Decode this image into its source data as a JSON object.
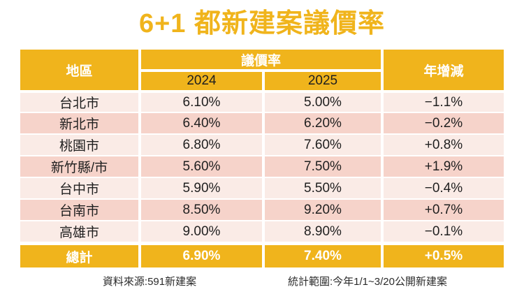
{
  "title": "6+1 都新建案議價率",
  "colors": {
    "accent_gold": "#F0B41C",
    "row_light_pink": "#FAEBE6",
    "row_dark_pink": "#F6D3CA",
    "header_text": "#FFFFFF",
    "body_text": "#1F1F1F"
  },
  "table": {
    "header": {
      "region": "地區",
      "rate_group": "議價率",
      "year_2024": "2024",
      "year_2025": "2025",
      "yoy": "年增減"
    },
    "rows": [
      {
        "region": "台北市",
        "y2024": "6.10%",
        "y2025": "5.00%",
        "yoy": "−1.1%"
      },
      {
        "region": "新北市",
        "y2024": "6.40%",
        "y2025": "6.20%",
        "yoy": "−0.2%"
      },
      {
        "region": "桃園市",
        "y2024": "6.80%",
        "y2025": "7.60%",
        "yoy": "+0.8%"
      },
      {
        "region": "新竹縣/市",
        "y2024": "5.60%",
        "y2025": "7.50%",
        "yoy": "+1.9%"
      },
      {
        "region": "台中市",
        "y2024": "5.90%",
        "y2025": "5.50%",
        "yoy": "−0.4%"
      },
      {
        "region": "台南市",
        "y2024": "8.50%",
        "y2025": "9.20%",
        "yoy": "+0.7%"
      },
      {
        "region": "高雄市",
        "y2024": "9.00%",
        "y2025": "8.90%",
        "yoy": "−0.1%"
      }
    ],
    "total": {
      "region": "總計",
      "y2024": "6.90%",
      "y2025": "7.40%",
      "yoy": "+0.5%"
    }
  },
  "footer": {
    "source": "資料來源:591新建案",
    "scope": "統計範圍:今年1/1~3/20公開新建案"
  },
  "chart_data": {
    "type": "table",
    "title": "6+1 都新建案議價率",
    "columns": [
      "地區",
      "議價率 2024",
      "議價率 2025",
      "年增減"
    ],
    "categories": [
      "台北市",
      "新北市",
      "桃園市",
      "新竹縣/市",
      "台中市",
      "台南市",
      "高雄市",
      "總計"
    ],
    "series": [
      {
        "name": "2024 議價率(%)",
        "values": [
          6.1,
          6.4,
          6.8,
          5.6,
          5.9,
          8.5,
          9.0,
          6.9
        ]
      },
      {
        "name": "2025 議價率(%)",
        "values": [
          5.0,
          6.2,
          7.6,
          7.5,
          5.5,
          9.2,
          8.9,
          7.4
        ]
      },
      {
        "name": "年增減(百分點)",
        "values": [
          -1.1,
          -0.2,
          0.8,
          1.9,
          -0.4,
          0.7,
          -0.1,
          0.5
        ]
      }
    ],
    "notes": [
      "資料來源:591新建案",
      "統計範圍:今年1/1~3/20公開新建案"
    ]
  }
}
